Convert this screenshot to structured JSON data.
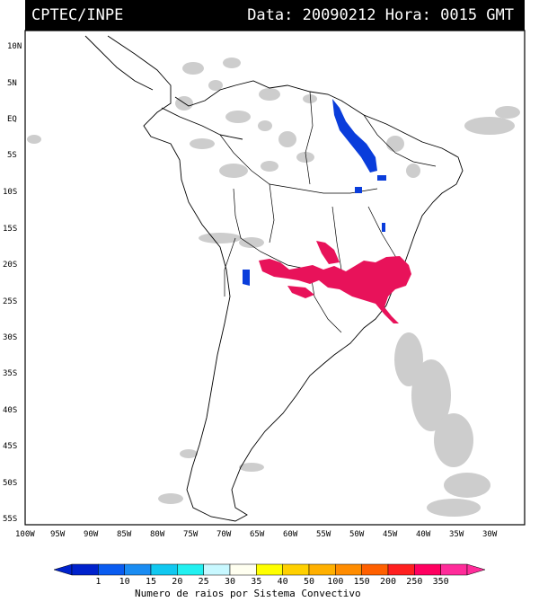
{
  "header": {
    "source": "CPTEC/INPE",
    "datetime": "Data: 20090212 Hora: 0015 GMT"
  },
  "axes": {
    "lat_labels": [
      "10N",
      "5N",
      "EQ",
      "5S",
      "10S",
      "15S",
      "20S",
      "25S",
      "30S",
      "35S",
      "40S",
      "45S",
      "50S",
      "55S"
    ],
    "lon_labels": [
      "100W",
      "95W",
      "90W",
      "85W",
      "80W",
      "75W",
      "70W",
      "65W",
      "60W",
      "55W",
      "50W",
      "45W",
      "40W",
      "35W",
      "30W"
    ]
  },
  "colorbar": {
    "ticks": [
      "1",
      "10",
      "15",
      "20",
      "25",
      "30",
      "35",
      "40",
      "50",
      "100",
      "150",
      "200",
      "250",
      "350"
    ],
    "colors": [
      "#0022cc",
      "#0a5cf0",
      "#1a8cf2",
      "#11c8f0",
      "#22f0f0",
      "#c8f8ff",
      "#fffff0",
      "#ffff00",
      "#ffd000",
      "#ffb000",
      "#ff8c00",
      "#ff6000",
      "#ff2020",
      "#ff0060",
      "#ff2c9a"
    ],
    "label": "Numero de raios por Sistema Convectivo"
  },
  "legend_colors": {
    "blue_cells": "#0a3ddb",
    "pink_cells": "#e8125a",
    "cloud_gray": "#c8c8c8"
  }
}
